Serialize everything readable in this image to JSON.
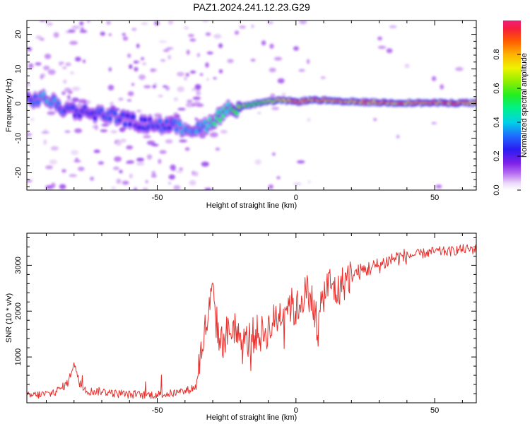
{
  "chart_data": [
    {
      "type": "heatmap",
      "title": "PAZ1.2024.241.12.23.G29",
      "xlabel": "Height of straight line (km)",
      "ylabel": "Frequency (Hz)",
      "xlim": [
        -97,
        65
      ],
      "ylim": [
        -25,
        24
      ],
      "x_ticks": [
        -50,
        0,
        50
      ],
      "y_ticks": [
        -20,
        -10,
        0,
        10,
        20
      ],
      "colorbar": {
        "label": "Normalized spectral amplitude",
        "range": [
          0,
          1
        ],
        "ticks": [
          0.0,
          0.2,
          0.4,
          0.6,
          0.8
        ]
      },
      "ridge": {
        "x": [
          -97,
          -90,
          -85,
          -80,
          -75,
          -70,
          -65,
          -60,
          -55,
          -50,
          -45,
          -40,
          -35,
          -30,
          -27,
          -24,
          -20,
          -17,
          -14,
          -10,
          -5,
          0,
          5,
          10,
          15,
          20,
          30,
          40,
          50,
          65
        ],
        "y": [
          1,
          1.5,
          -1,
          -2,
          -2.5,
          -3,
          -3.5,
          -5,
          -6,
          -6,
          -6.5,
          -7,
          -7.5,
          -5,
          -3,
          -1.5,
          -1,
          -0.5,
          0,
          0.5,
          1,
          0.5,
          1,
          1,
          0.5,
          0.5,
          0.3,
          0.2,
          0.2,
          0.2
        ]
      },
      "ridge_amplitude": [
        0.25,
        0.4,
        0.3,
        0.25,
        0.25,
        0.3,
        0.3,
        0.25,
        0.25,
        0.3,
        0.3,
        0.35,
        0.35,
        0.45,
        0.5,
        0.45,
        0.65,
        0.6,
        0.6,
        0.65,
        0.75,
        0.8,
        0.85,
        0.85,
        0.85,
        0.85,
        0.85,
        0.85,
        0.85,
        0.85
      ]
    },
    {
      "type": "line",
      "xlabel": "Height of straight line (km)",
      "ylabel": "SNR (10 * v/v)",
      "xlim": [
        -97,
        65
      ],
      "ylim": [
        0,
        3700
      ],
      "x_ticks": [
        -50,
        0,
        50
      ],
      "y_ticks": [
        1000,
        2000,
        3000
      ],
      "series": [
        {
          "color": "#e8302c",
          "x": [
            -97,
            -92,
            -88,
            -85,
            -82,
            -80,
            -78,
            -75,
            -70,
            -65,
            -60,
            -55,
            -50,
            -45,
            -40,
            -36,
            -34,
            -32,
            -30,
            -29,
            -28,
            -27,
            -25,
            -22,
            -20,
            -15,
            -12,
            -10,
            -5,
            -3,
            0,
            3,
            5,
            8,
            10,
            12,
            15,
            18,
            20,
            25,
            30,
            35,
            40,
            45,
            50,
            55,
            60,
            65
          ],
          "y": [
            150,
            180,
            200,
            300,
            450,
            900,
            400,
            250,
            250,
            200,
            180,
            170,
            180,
            200,
            250,
            350,
            1200,
            1800,
            2400,
            1900,
            1500,
            1300,
            1500,
            1700,
            1200,
            1500,
            1500,
            1600,
            2000,
            2200,
            2000,
            2400,
            2400,
            1600,
            2400,
            2600,
            2400,
            2700,
            2800,
            2900,
            3000,
            3150,
            3200,
            3250,
            3300,
            3300,
            3350,
            3350
          ]
        }
      ]
    }
  ]
}
